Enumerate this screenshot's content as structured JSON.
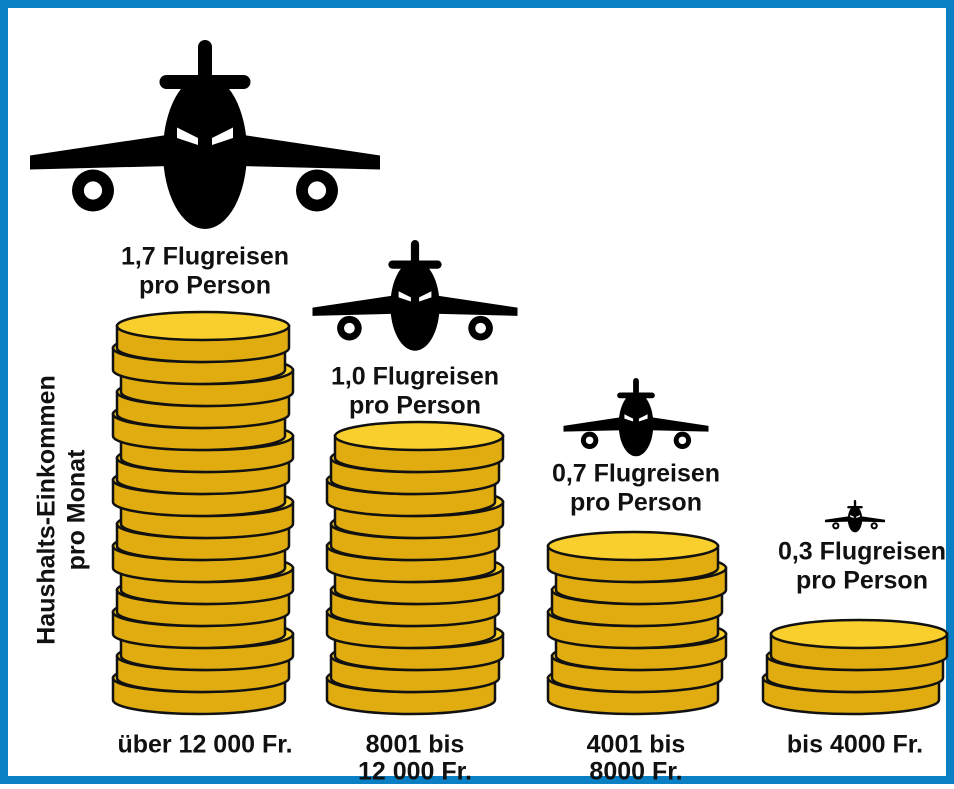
{
  "axis_label": [
    "Haushalts-Einkommen",
    "pro Monat"
  ],
  "groups": [
    {
      "trips": [
        "1,7 Flugreisen",
        "pro Person"
      ],
      "income": [
        "über 12 000 Fr."
      ]
    },
    {
      "trips": [
        "1,0 Flugreisen",
        "pro Person"
      ],
      "income": [
        "8001 bis",
        "12 000 Fr."
      ]
    },
    {
      "trips": [
        "0,7 Flugreisen",
        "pro Person"
      ],
      "income": [
        "4001 bis",
        "8000 Fr."
      ]
    },
    {
      "trips": [
        "0,3 Flugreisen",
        "pro Person"
      ],
      "income": [
        "bis 4000 Fr."
      ]
    }
  ]
}
